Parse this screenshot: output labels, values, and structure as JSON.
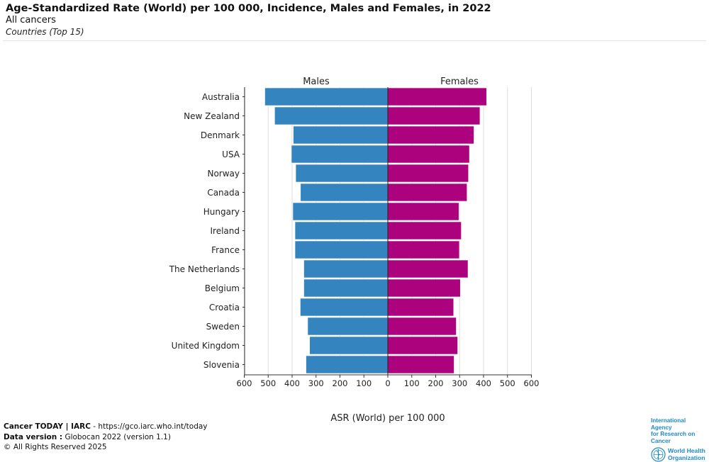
{
  "header": {
    "title": "Age-Standardized Rate (World) per 100 000, Incidence, Males and Females, in 2022",
    "subtitle": "All cancers",
    "subsubtitle": "Countries (Top 15)"
  },
  "footer": {
    "line1_bold": "Cancer TODAY | IARC",
    "line1_rest": " - https://gco.iarc.who.int/today",
    "line2_bold": "Data version :",
    "line2_rest": " Globocan 2022 (version 1.1)",
    "line3": "© All Rights Reserved 2025"
  },
  "logos": {
    "iarc_line1": "International Agency",
    "iarc_line2": "for Research on Cancer",
    "who_line1": "World Health",
    "who_line2": "Organization"
  },
  "colors": {
    "males": "#3484bf",
    "females": "#ad027e"
  },
  "chart_data": {
    "type": "bar",
    "orientation": "horizontal-pyramid",
    "categories": [
      "Australia",
      "New Zealand",
      "Denmark",
      "USA",
      "Norway",
      "Canada",
      "Hungary",
      "Ireland",
      "France",
      "The Netherlands",
      "Belgium",
      "Croatia",
      "Sweden",
      "United Kingdom",
      "Slovenia"
    ],
    "series": [
      {
        "name": "Males",
        "side": "left",
        "values": [
          514,
          473,
          395,
          403,
          385,
          365,
          397,
          388,
          388,
          351,
          351,
          366,
          335,
          327,
          342
        ]
      },
      {
        "name": "Females",
        "side": "right",
        "values": [
          413,
          385,
          360,
          341,
          337,
          331,
          297,
          307,
          299,
          335,
          303,
          275,
          286,
          292,
          277
        ]
      }
    ],
    "xlabel": "ASR (World) per 100 000",
    "xlim": [
      0,
      600
    ],
    "xticks": [
      600,
      500,
      400,
      300,
      200,
      100,
      0,
      100,
      200,
      300,
      400,
      500,
      600
    ],
    "grid": true
  }
}
